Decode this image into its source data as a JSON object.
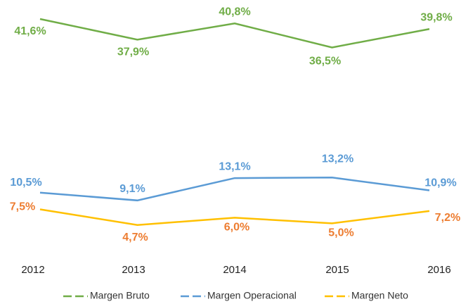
{
  "chart_data": {
    "type": "line",
    "categories": [
      "2012",
      "2013",
      "2014",
      "2015",
      "2016"
    ],
    "ylim": [
      0,
      45
    ],
    "series": [
      {
        "name": "Margen Bruto",
        "color": "#70ad47",
        "label_color": "#70ad47",
        "values": [
          41.6,
          37.9,
          40.8,
          36.5,
          39.8
        ],
        "value_labels": [
          "41,6%",
          "37,9%",
          "40,8%",
          "36,5%",
          "39,8%"
        ]
      },
      {
        "name": "Margen Operacional",
        "color": "#5b9bd5",
        "label_color": "#5b9bd5",
        "values": [
          10.5,
          9.1,
          13.1,
          13.2,
          10.9
        ],
        "value_labels": [
          "10,5%",
          "9,1%",
          "13,1%",
          "13,2%",
          "10,9%"
        ]
      },
      {
        "name": "Margen Neto",
        "color": "#ffc000",
        "label_color": "#ed7d31",
        "values": [
          7.5,
          4.7,
          6.0,
          5.0,
          7.2
        ],
        "value_labels": [
          "7,5%",
          "4,7%",
          "6,0%",
          "5,0%",
          "7,2%"
        ]
      }
    ],
    "legend": "bottom"
  }
}
